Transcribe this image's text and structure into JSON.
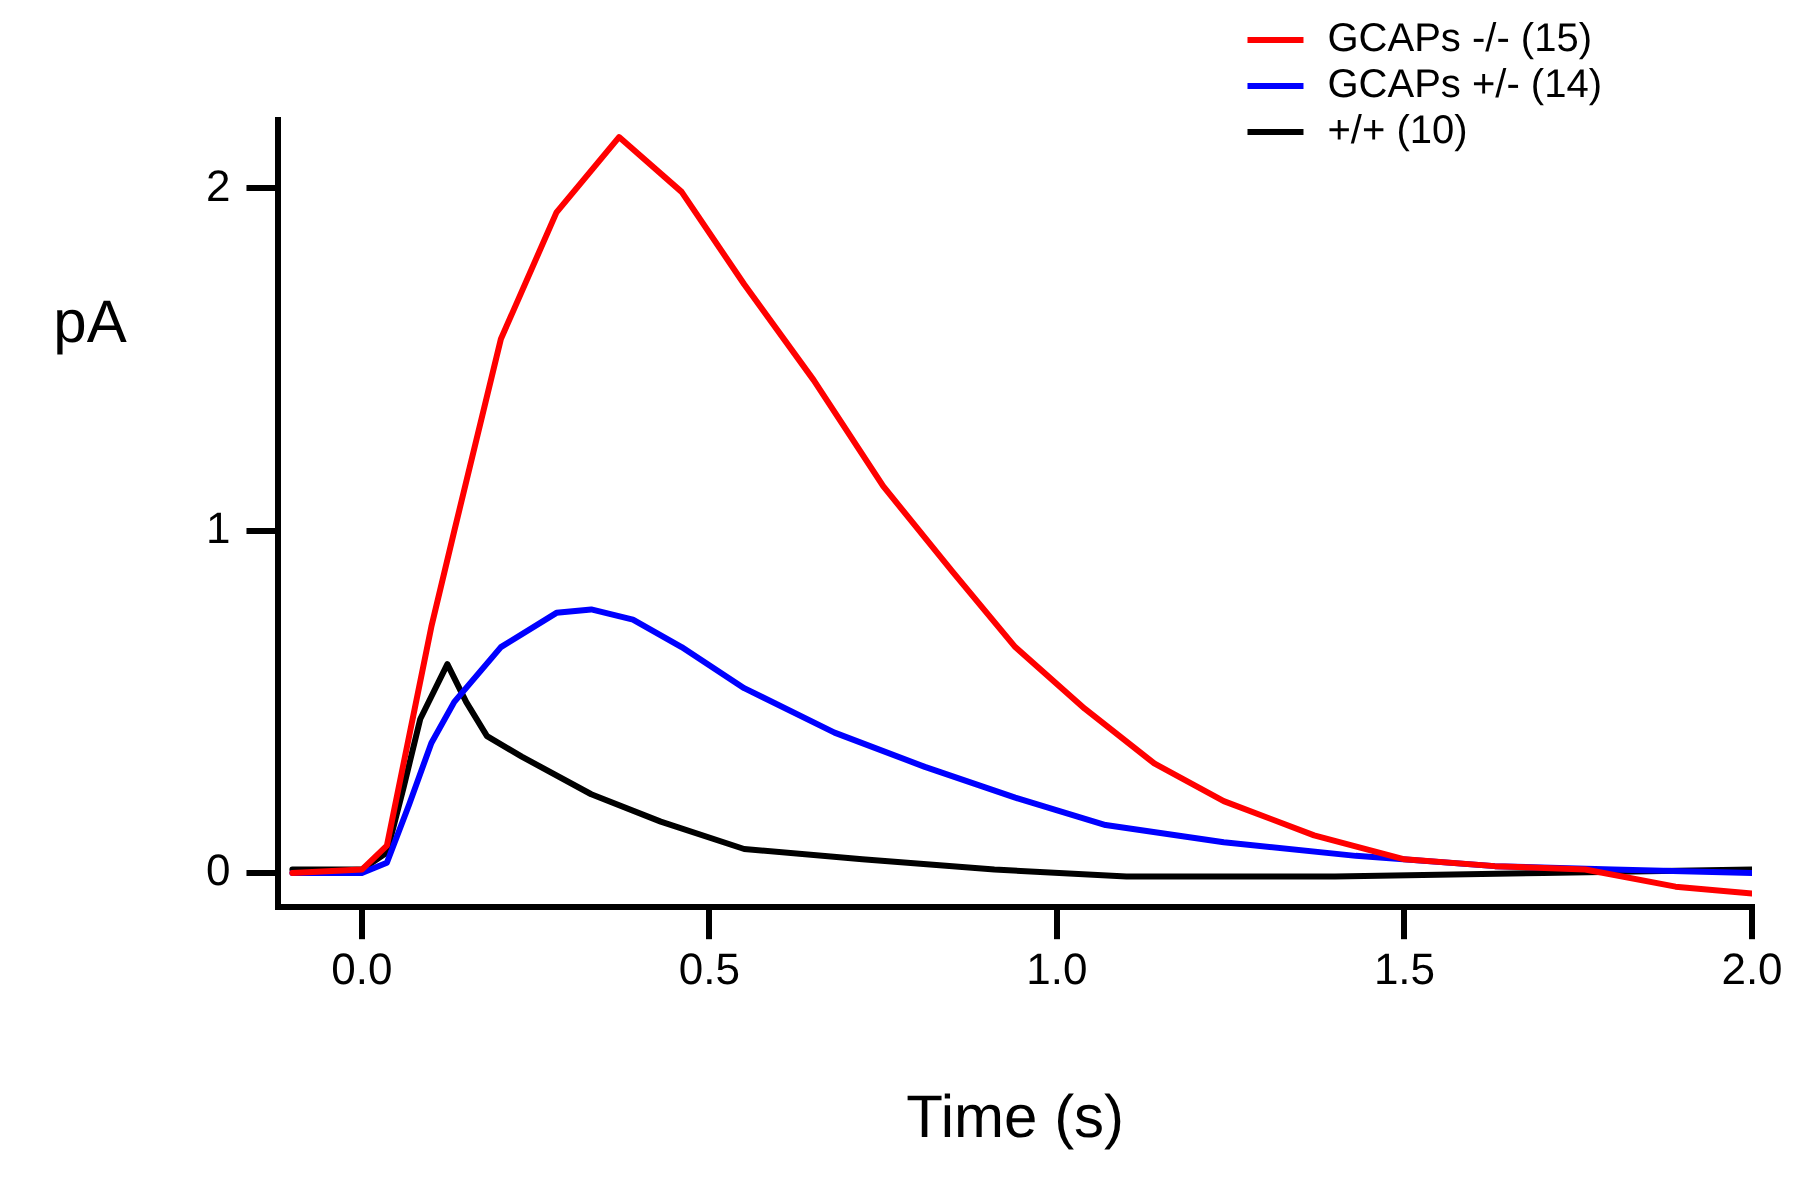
{
  "chart_data": {
    "type": "line",
    "xlabel": "Time (s)",
    "ylabel": "pA",
    "xlim": [
      -0.12,
      2.0
    ],
    "xticks": [
      {
        "value": 0,
        "label": "0.0"
      },
      0.5,
      {
        "value": 1,
        "label": "1.0"
      },
      1.5,
      {
        "value": 2,
        "label": "2.0"
      }
    ],
    "ylim": [
      -0.1,
      2.2
    ],
    "yticks": [
      0,
      1,
      2
    ],
    "grid": false,
    "legend": "top right",
    "marker": "none",
    "line_style": "solid",
    "series": [
      {
        "name": "GCAPs -/- (15)",
        "color": "#ff0000",
        "x": [
          -0.1,
          0,
          0.036,
          0.068,
          0.1,
          0.133,
          0.2,
          0.28,
          0.37,
          0.46,
          0.55,
          0.65,
          0.75,
          0.85,
          0.94,
          1.04,
          1.14,
          1.24,
          1.37,
          1.5,
          1.63,
          1.76,
          1.89,
          2.0
        ],
        "values": [
          0,
          0.01,
          0.08,
          0.4,
          0.72,
          1.0,
          1.56,
          1.93,
          2.15,
          1.99,
          1.72,
          1.44,
          1.13,
          0.88,
          0.66,
          0.48,
          0.32,
          0.21,
          0.11,
          0.04,
          0.02,
          0.01,
          -0.04,
          -0.06
        ]
      },
      {
        "name": "GCAPs +/- (14)",
        "color": "#0000ff",
        "x": [
          -0.1,
          0,
          0.036,
          0.068,
          0.1,
          0.133,
          0.2,
          0.28,
          0.33,
          0.39,
          0.46,
          0.55,
          0.68,
          0.81,
          0.94,
          1.07,
          1.24,
          1.43,
          1.63,
          1.8,
          2.0
        ],
        "values": [
          0,
          0,
          0.03,
          0.2,
          0.38,
          0.5,
          0.66,
          0.76,
          0.77,
          0.74,
          0.66,
          0.54,
          0.41,
          0.31,
          0.22,
          0.14,
          0.09,
          0.05,
          0.02,
          0.01,
          0
        ]
      },
      {
        "name": "+/+ (10)",
        "color": "#000000",
        "x": [
          -0.1,
          0,
          0.036,
          0.06,
          0.084,
          0.123,
          0.15,
          0.18,
          0.23,
          0.33,
          0.43,
          0.55,
          0.72,
          0.91,
          1.1,
          1.4,
          1.7,
          2.0
        ],
        "values": [
          0.01,
          0.01,
          0.06,
          0.25,
          0.45,
          0.61,
          0.5,
          0.4,
          0.34,
          0.23,
          0.15,
          0.07,
          0.04,
          0.01,
          -0.01,
          -0.01,
          0,
          0.01
        ]
      }
    ]
  }
}
